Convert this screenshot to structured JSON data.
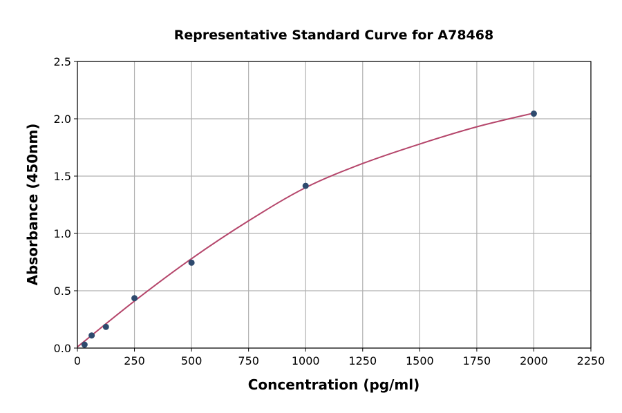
{
  "chart_data": {
    "type": "scatter",
    "title": "Representative Standard Curve for A78468",
    "xlabel": "Concentration (pg/ml)",
    "ylabel": "Absorbance (450nm)",
    "xlim": [
      0,
      2250
    ],
    "ylim": [
      0,
      2.5
    ],
    "xticks": [
      "0",
      "250",
      "500",
      "750",
      "1000",
      "1250",
      "1500",
      "1750",
      "2000",
      "2250"
    ],
    "yticks": [
      "0.0",
      "0.5",
      "1.0",
      "1.5",
      "2.0",
      "2.5"
    ],
    "grid": true,
    "points": [
      {
        "x": 31.25,
        "y": 0.03
      },
      {
        "x": 62.5,
        "y": 0.11
      },
      {
        "x": 125,
        "y": 0.185
      },
      {
        "x": 250,
        "y": 0.435
      },
      {
        "x": 500,
        "y": 0.745
      },
      {
        "x": 1000,
        "y": 1.415
      },
      {
        "x": 2000,
        "y": 2.045
      }
    ],
    "fit_curve": {
      "x": [
        0,
        250,
        500,
        750,
        1000,
        1250,
        1500,
        1750,
        2000
      ],
      "y": [
        0.01,
        0.41,
        0.78,
        1.11,
        1.4,
        1.61,
        1.78,
        1.93,
        2.05
      ]
    },
    "colors": {
      "points": "#2e4a6e",
      "curve": "#b5466b",
      "grid": "#b0b0b0"
    }
  }
}
